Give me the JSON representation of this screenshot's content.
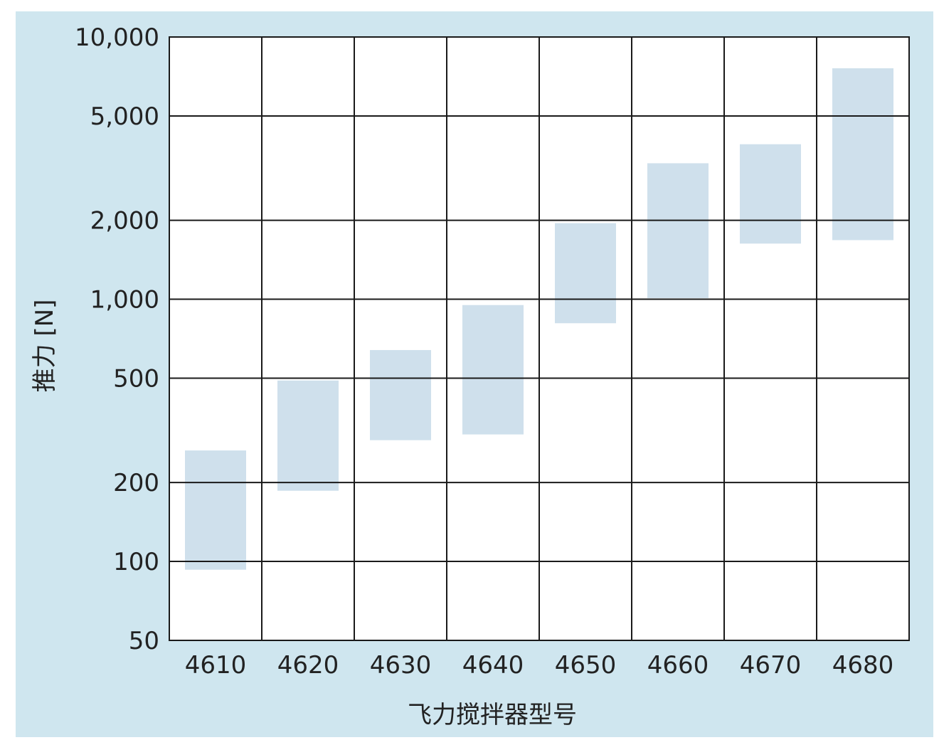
{
  "chart_data": {
    "type": "bar",
    "subtype": "floating-range",
    "title": "",
    "xlabel": "飞力搅拌器型号",
    "ylabel": "推力 [N]",
    "yscale": "log",
    "ylim": [
      50,
      10000
    ],
    "yticks": [
      50,
      100,
      200,
      500,
      1000,
      2000,
      5000,
      10000
    ],
    "ytick_labels": [
      "50",
      "100",
      "200",
      "500",
      "1,000",
      "2,000",
      "5,000",
      "10,000"
    ],
    "categories": [
      "4610",
      "4620",
      "4630",
      "4640",
      "4650",
      "4660",
      "4670",
      "4680"
    ],
    "ranges": [
      {
        "low": 93,
        "high": 265
      },
      {
        "low": 186,
        "high": 490
      },
      {
        "low": 290,
        "high": 640
      },
      {
        "low": 305,
        "high": 950
      },
      {
        "low": 810,
        "high": 1950
      },
      {
        "low": 1010,
        "high": 3300
      },
      {
        "low": 1630,
        "high": 3900
      },
      {
        "low": 1680,
        "high": 7600
      }
    ],
    "grid": true,
    "legend": "none",
    "colors": {
      "panel_background": "#cfe6ef",
      "plot_background": "#ffffff",
      "bar_fill": "#cfe0ec",
      "grid_line": "#1a1a1a",
      "text": "#222222"
    }
  }
}
